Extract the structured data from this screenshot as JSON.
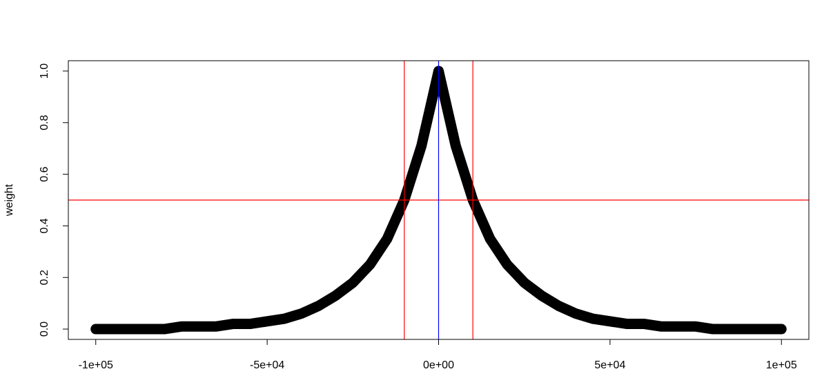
{
  "chart_data": {
    "type": "line",
    "ylabel": "weight",
    "x": [
      -100000,
      -95000,
      -90000,
      -85000,
      -80000,
      -75000,
      -70000,
      -65000,
      -60000,
      -55000,
      -50000,
      -45000,
      -40000,
      -35000,
      -30000,
      -25000,
      -20000,
      -15000,
      -10000,
      -5000,
      0,
      5000,
      10000,
      15000,
      20000,
      25000,
      30000,
      35000,
      40000,
      45000,
      50000,
      55000,
      60000,
      65000,
      70000,
      75000,
      80000,
      85000,
      90000,
      95000,
      100000
    ],
    "series": [
      {
        "name": "weight",
        "color": "#000000",
        "values": [
          0,
          0,
          0,
          0,
          0,
          0.01,
          0.01,
          0.01,
          0.02,
          0.02,
          0.03,
          0.04,
          0.06,
          0.09,
          0.13,
          0.18,
          0.25,
          0.35,
          0.5,
          0.71,
          1,
          0.71,
          0.5,
          0.35,
          0.25,
          0.18,
          0.13,
          0.09,
          0.06,
          0.04,
          0.03,
          0.02,
          0.02,
          0.01,
          0.01,
          0.01,
          0,
          0,
          0,
          0,
          0
        ]
      }
    ],
    "xlim": [
      -108000,
      108000
    ],
    "ylim": [
      -0.04,
      1.04
    ],
    "xticks": [
      {
        "value": -100000,
        "label": "-1e+05"
      },
      {
        "value": -50000,
        "label": "-5e+04"
      },
      {
        "value": 0,
        "label": "0e+00"
      },
      {
        "value": 50000,
        "label": "5e+04"
      },
      {
        "value": 100000,
        "label": "1e+05"
      }
    ],
    "yticks": [
      {
        "value": 0,
        "label": "0.0"
      },
      0.2,
      0.4,
      0.6,
      0.8,
      {
        "value": 1,
        "label": "1.0"
      }
    ],
    "hlines": [
      {
        "value": 0.5,
        "color": "#ff0000"
      }
    ],
    "vlines": [
      {
        "value": -10000,
        "color": "#ff0000"
      },
      {
        "value": 10000,
        "color": "#ff0000"
      },
      {
        "value": 0,
        "color": "#0000ff"
      }
    ],
    "grid": false
  }
}
